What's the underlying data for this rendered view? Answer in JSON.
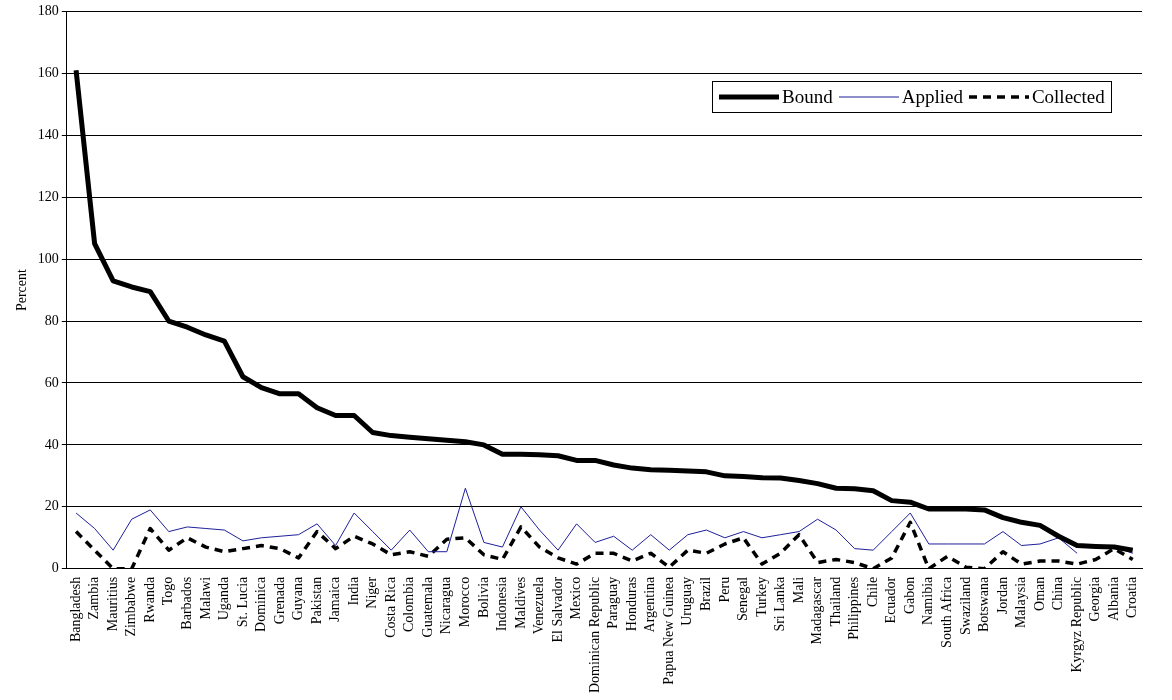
{
  "chart_data": {
    "type": "line",
    "ylabel": "Percent",
    "categories": [
      "Bangladesh",
      "Zambia",
      "Mauritius",
      "Zimbabwe",
      "Rwanda",
      "Togo",
      "Barbados",
      "Malawi",
      "Uganda",
      "St. Lucia",
      "Dominica",
      "Grenada",
      "Guyana",
      "Pakistan",
      "Jamaica",
      "India",
      "Niger",
      "Costa Rica",
      "Colombia",
      "Guatemala",
      "Nicaragua",
      "Morocco",
      "Bolivia",
      "Indonesia",
      "Maldives",
      "Venezuela",
      "El Salvador",
      "Mexico",
      "Dominican Republic",
      "Paraguay",
      "Honduras",
      "Argentina",
      "Papua New Guinea",
      "Uruguay",
      "Brazil",
      "Peru",
      "Senegal",
      "Turkey",
      "Sri Lanka",
      "Mali",
      "Madagascar",
      "Thailand",
      "Philippines",
      "Chile",
      "Ecuador",
      "Gabon",
      "Namibia",
      "South Africa",
      "Swaziland",
      "Botswana",
      "Jordan",
      "Malaysia",
      "Oman",
      "China",
      "Kyrgyz Republic",
      "Georgia",
      "Albania",
      "Croatia"
    ],
    "series": [
      {
        "name": "Bound",
        "color": "#000000",
        "line_style": "solid",
        "values": [
          161,
          105,
          93,
          91,
          89.5,
          80,
          78,
          75.5,
          73.5,
          62,
          58.5,
          56.5,
          56.5,
          52,
          49.5,
          49.5,
          44,
          43,
          42.5,
          42,
          41.5,
          41,
          40,
          37,
          37,
          36.8,
          36.5,
          35,
          35,
          33.5,
          32.5,
          32,
          31.8,
          31.6,
          31.3,
          30,
          29.8,
          29.4,
          29.3,
          28.5,
          27.5,
          26,
          25.8,
          25.2,
          22,
          21.5,
          19.3,
          19.3,
          19.3,
          19,
          16.5,
          15,
          14,
          10.5,
          7.5,
          7.2,
          7,
          6
        ]
      },
      {
        "name": "Applied",
        "color": "#1f1f9a",
        "line_style": "solid",
        "values": [
          18,
          13,
          6,
          16,
          19,
          12,
          13.5,
          13,
          12.5,
          9,
          10,
          10.5,
          11,
          14.5,
          7.5,
          18,
          12,
          6,
          12.5,
          5.5,
          5.5,
          26,
          8.5,
          7,
          20,
          12.5,
          6,
          14.5,
          8.5,
          10.5,
          6,
          11,
          6,
          11,
          12.5,
          10,
          12,
          10,
          11,
          12,
          16,
          12.5,
          6.5,
          6,
          12,
          18,
          8,
          8,
          8,
          8,
          12,
          7.5,
          8,
          10,
          5,
          null,
          7,
          5
        ]
      },
      {
        "name": "Collected",
        "color": "#000000",
        "line_style": "dashed",
        "values": [
          12,
          6,
          0,
          0,
          13,
          6,
          10,
          7,
          5.5,
          6.5,
          7.5,
          6.5,
          3.5,
          12,
          6.5,
          10.5,
          8,
          4.5,
          5.5,
          4,
          9.5,
          10,
          4.5,
          3,
          13.5,
          7,
          3.5,
          1.5,
          5,
          5,
          2.5,
          5,
          0.5,
          6,
          5,
          8,
          10,
          1.5,
          5,
          11,
          2,
          3,
          2,
          0,
          3.5,
          15,
          0,
          4,
          0.5,
          0,
          5.5,
          1.5,
          2.5,
          2.5,
          1.5,
          3,
          6.5,
          3
        ]
      }
    ],
    "ylim": [
      0,
      180
    ],
    "yticks": [
      0,
      20,
      40,
      60,
      80,
      100,
      120,
      140,
      160,
      180
    ],
    "grid": "y",
    "legend": "top right",
    "marker": "none"
  }
}
